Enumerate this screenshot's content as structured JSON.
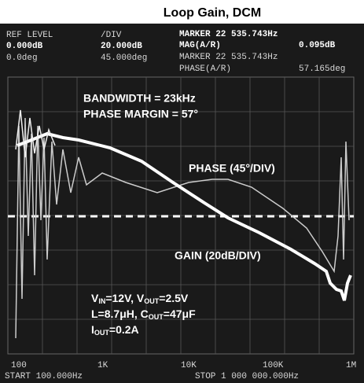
{
  "title": "Loop Gain, DCM",
  "header": {
    "row1": [
      "REF LEVEL",
      "/DIV",
      "MARKER 22 535.743Hz"
    ],
    "row2": [
      "0.000dB",
      "20.000dB",
      "MAG(A/R)",
      "0.095dB"
    ],
    "row3": [
      "0.0deg",
      "45.000deg",
      "MARKER 22 535.743Hz"
    ],
    "row4": [
      "PHASE(A/R)",
      "57.165deg"
    ]
  },
  "annotations": {
    "bandwidth": "BANDWIDTH = 23kHz",
    "phase_margin": "PHASE MARGIN = 57°",
    "phase_scale": "PHASE (45°/DIV)",
    "gain_scale": "GAIN (20dB/DIV)",
    "conditions": [
      [
        "V",
        "IN",
        "=12V, V",
        "OUT",
        "=2.5V"
      ],
      [
        "L=8.7μH, C",
        "OUT",
        "=47μF"
      ],
      [
        "I",
        "OUT",
        "=0.2A"
      ]
    ]
  },
  "x_labels": [
    "100",
    "1K",
    "10K",
    "100K",
    "1M"
  ],
  "footer": {
    "start": "START 100.000Hz",
    "stop": "STOP 1 000 000.000Hz"
  }
}
